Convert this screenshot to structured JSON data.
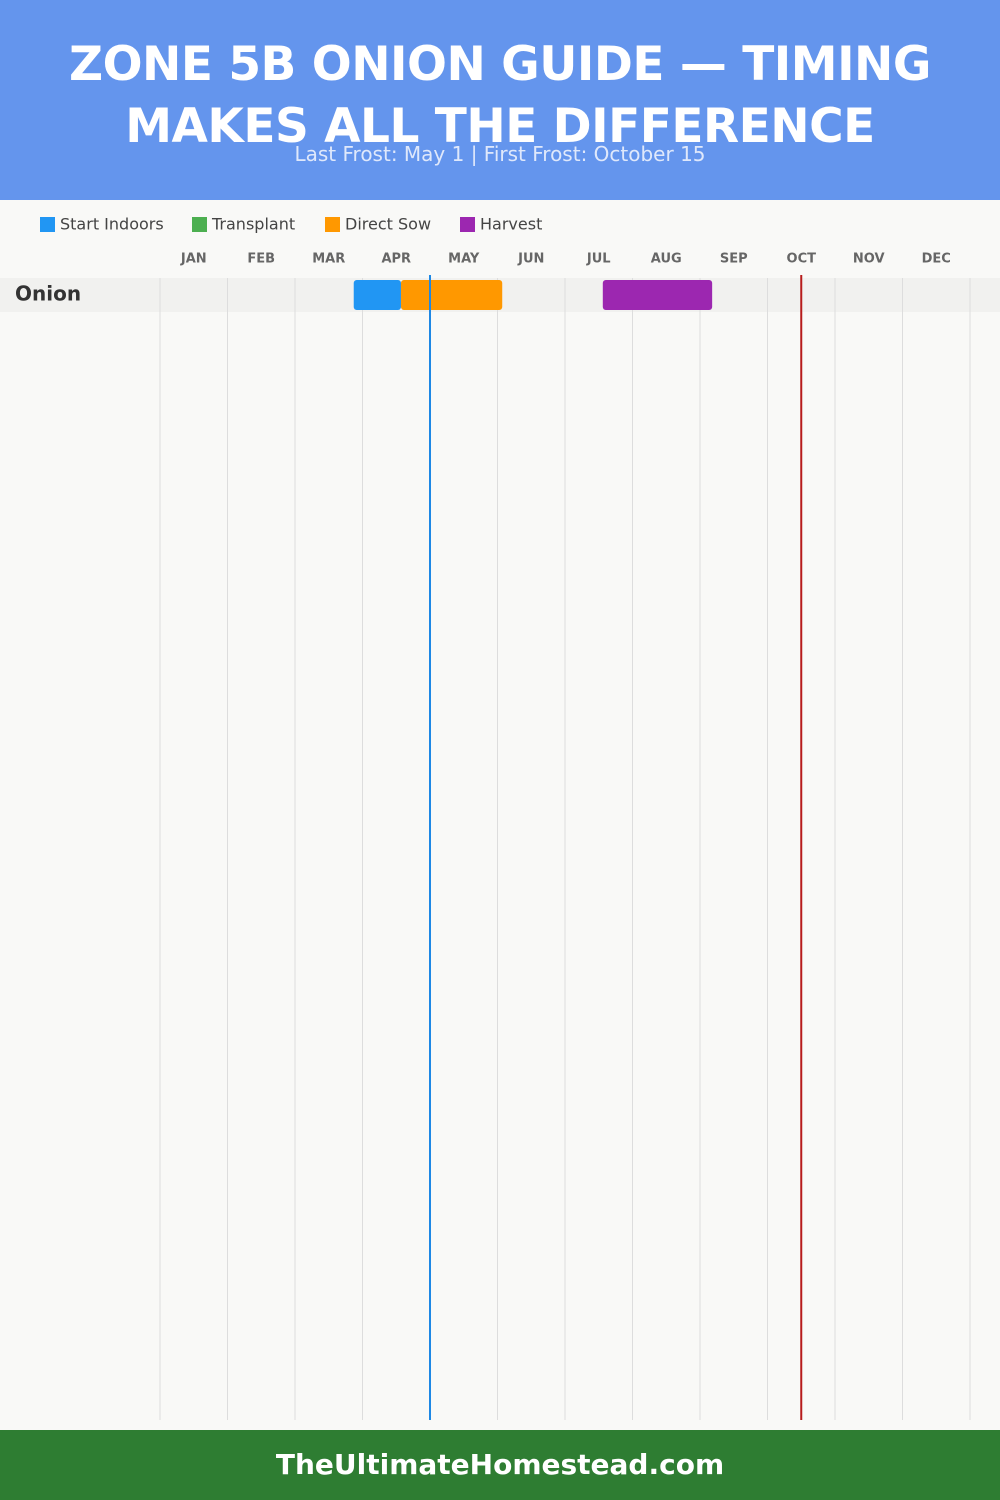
{
  "chart_data": {
    "type": "gantt",
    "title": "ZONE 5B ONION GUIDE — TIMING MAKES ALL THE DIFFERENCE",
    "subtitle": "Last Frost: May 1 | First Frost: October 15",
    "categories": [
      "JAN",
      "FEB",
      "MAR",
      "APR",
      "MAY",
      "JUN",
      "JUL",
      "AUG",
      "SEP",
      "OCT",
      "NOV",
      "DEC"
    ],
    "xlim": [
      0,
      12
    ],
    "rows": [
      "Onion"
    ],
    "series": [
      {
        "name": "Start Indoors",
        "color": "#2196f3",
        "ranges": [
          {
            "row": 0,
            "start": 2.87,
            "end": 3.57
          }
        ]
      },
      {
        "name": "Transplant",
        "color": "#4caf50",
        "ranges": []
      },
      {
        "name": "Direct Sow",
        "color": "#ff9800",
        "ranges": [
          {
            "row": 0,
            "start": 3.57,
            "end": 5.07
          }
        ]
      },
      {
        "name": "Harvest",
        "color": "#9c27b0",
        "ranges": [
          {
            "row": 0,
            "start": 6.56,
            "end": 8.18
          }
        ]
      }
    ],
    "frost_lines": [
      {
        "value": 4.0,
        "color": "#1e88e5"
      },
      {
        "value": 9.5,
        "color": "#b71c1c"
      }
    ],
    "grid": true
  },
  "footer": "TheUltimateHomestead.com"
}
